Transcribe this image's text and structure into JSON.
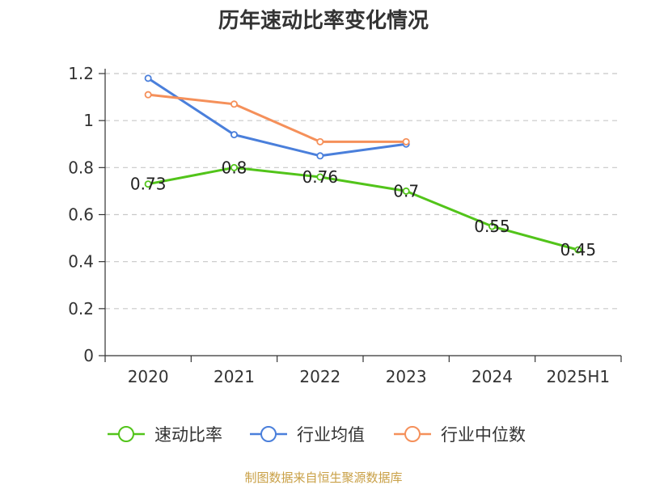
{
  "chart_data": {
    "type": "line",
    "title": "历年速动比率变化情况",
    "categories": [
      "2020",
      "2021",
      "2022",
      "2023",
      "2024",
      "2025H1"
    ],
    "ylim": [
      0,
      1.2
    ],
    "yticks": [
      "0",
      "0.2",
      "0.4",
      "0.6",
      "0.8",
      "1",
      "1.2"
    ],
    "grid": true,
    "legend_position": "bottom",
    "series": [
      {
        "name": "速动比率",
        "color": "#52c41a",
        "values": [
          0.73,
          0.8,
          0.76,
          0.7,
          0.55,
          0.45
        ],
        "labels": [
          "0.73",
          "0.8",
          "0.76",
          "0.7",
          "0.55",
          "0.45"
        ],
        "show_labels": true
      },
      {
        "name": "行业均值",
        "color": "#4a7fdb",
        "values": [
          1.18,
          0.94,
          0.85,
          0.9,
          null,
          null
        ],
        "show_labels": false
      },
      {
        "name": "行业中位数",
        "color": "#f5905a",
        "values": [
          1.11,
          1.07,
          0.91,
          0.91,
          null,
          null
        ],
        "show_labels": false
      }
    ]
  },
  "source_text": "制图数据来自恒生聚源数据库",
  "source_color": "#c9a046"
}
